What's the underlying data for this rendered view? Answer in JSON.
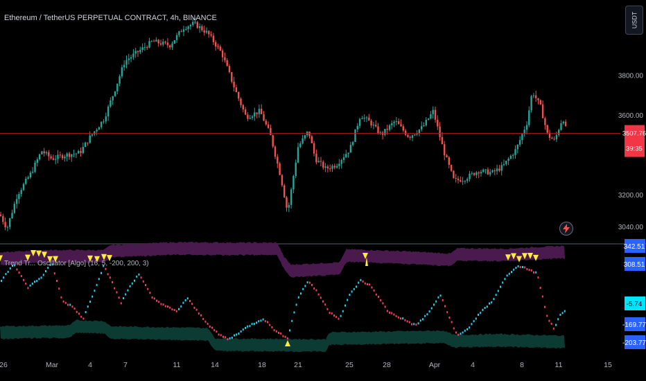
{
  "header": {
    "symbol_title": "Ethereum / TetherUS PERPETUAL CONTRACT, 4h, BINANCE",
    "currency_button": "USDT"
  },
  "indicator": {
    "label": "Trend Tr... Oscillator [Algo] (16, 5, -200, 200, 3)"
  },
  "colors": {
    "bull": "#26a69a",
    "bear": "#ef5350",
    "price_line": "#b71c1c",
    "price_label_bg": "#f23645",
    "osc_up": "#22d3ee",
    "osc_down": "#f43f5e",
    "upper_band": "#4a1a4f",
    "lower_band": "#0c3b33",
    "signal": "#ffeb3b",
    "blue_label": "#2962ff",
    "cyan_label": "#00e5ff"
  },
  "chart_data": [
    {
      "type": "candlestick",
      "title": "Ethereum / TetherUS PERPETUAL CONTRACT, 4h, BINANCE",
      "y_tick_labels": [
        "3800.00",
        "3600.00",
        "3200.00",
        "3040.00"
      ],
      "y_ticks": [
        3800,
        3600,
        3200,
        3040
      ],
      "ylim": [
        2960,
        4150
      ],
      "x_tick_labels": [
        "26",
        "Mar",
        "4",
        "7",
        "11",
        "14",
        "18",
        "21",
        "25",
        "28",
        "Apr",
        "4",
        "8",
        "11",
        "15"
      ],
      "current_price": 3507.76,
      "current_price_label": "3507.76",
      "countdown_label": "39:35",
      "price_path": [
        [
          0,
          3100
        ],
        [
          10,
          3030
        ],
        [
          25,
          3200
        ],
        [
          45,
          3310
        ],
        [
          60,
          3420
        ],
        [
          75,
          3380
        ],
        [
          95,
          3400
        ],
        [
          115,
          3410
        ],
        [
          130,
          3490
        ],
        [
          150,
          3580
        ],
        [
          165,
          3720
        ],
        [
          180,
          3870
        ],
        [
          200,
          3920
        ],
        [
          220,
          3970
        ],
        [
          245,
          3950
        ],
        [
          265,
          4040
        ],
        [
          280,
          4060
        ],
        [
          300,
          4010
        ],
        [
          320,
          3910
        ],
        [
          340,
          3720
        ],
        [
          355,
          3590
        ],
        [
          375,
          3620
        ],
        [
          390,
          3500
        ],
        [
          405,
          3290
        ],
        [
          415,
          3110
        ],
        [
          430,
          3440
        ],
        [
          445,
          3520
        ],
        [
          455,
          3380
        ],
        [
          470,
          3330
        ],
        [
          485,
          3350
        ],
        [
          505,
          3430
        ],
        [
          520,
          3600
        ],
        [
          535,
          3560
        ],
        [
          550,
          3500
        ],
        [
          570,
          3570
        ],
        [
          590,
          3490
        ],
        [
          610,
          3540
        ],
        [
          625,
          3620
        ],
        [
          640,
          3420
        ],
        [
          655,
          3270
        ],
        [
          670,
          3280
        ],
        [
          690,
          3320
        ],
        [
          710,
          3310
        ],
        [
          725,
          3340
        ],
        [
          745,
          3430
        ],
        [
          760,
          3560
        ],
        [
          768,
          3720
        ],
        [
          780,
          3640
        ],
        [
          790,
          3500
        ],
        [
          800,
          3470
        ],
        [
          812,
          3590
        ],
        [
          818,
          3507
        ]
      ]
    },
    {
      "type": "oscillator",
      "title": "Trend Tr... Oscillator [Algo] (16, 5, -200, 200, 3)",
      "y_tick_labels": [
        "342.51",
        "308.51",
        "-5.74",
        "-169.77",
        "-203.77"
      ],
      "y_ticks": [
        342.51,
        308.51,
        -5.74,
        -169.77,
        -203.77
      ],
      "ylim": [
        -260,
        360
      ],
      "current_value": -5.74,
      "current_value_label": "-5.74",
      "upper_band": [
        [
          0,
          285
        ],
        [
          60,
          300
        ],
        [
          150,
          300
        ],
        [
          160,
          330
        ],
        [
          250,
          345
        ],
        [
          400,
          342
        ],
        [
          410,
          260
        ],
        [
          420,
          215
        ],
        [
          490,
          230
        ],
        [
          500,
          305
        ],
        [
          600,
          290
        ],
        [
          650,
          280
        ],
        [
          660,
          310
        ],
        [
          730,
          308
        ],
        [
          815,
          325
        ]
      ],
      "lower_band": [
        [
          0,
          -140
        ],
        [
          100,
          -135
        ],
        [
          110,
          -105
        ],
        [
          150,
          -110
        ],
        [
          160,
          -140
        ],
        [
          300,
          -150
        ],
        [
          310,
          -210
        ],
        [
          470,
          -215
        ],
        [
          475,
          -175
        ],
        [
          560,
          -170
        ],
        [
          640,
          -165
        ],
        [
          655,
          -190
        ],
        [
          720,
          -185
        ],
        [
          815,
          -195
        ]
      ],
      "oscillator": [
        [
          0,
          150
        ],
        [
          20,
          260
        ],
        [
          40,
          120
        ],
        [
          60,
          180
        ],
        [
          75,
          260
        ],
        [
          90,
          40
        ],
        [
          105,
          10
        ],
        [
          120,
          -60
        ],
        [
          135,
          90
        ],
        [
          150,
          250
        ],
        [
          165,
          120
        ],
        [
          175,
          30
        ],
        [
          185,
          110
        ],
        [
          200,
          200
        ],
        [
          220,
          60
        ],
        [
          240,
          10
        ],
        [
          255,
          -20
        ],
        [
          270,
          60
        ],
        [
          285,
          -20
        ],
        [
          300,
          -90
        ],
        [
          315,
          -150
        ],
        [
          330,
          -180
        ],
        [
          345,
          -140
        ],
        [
          360,
          -100
        ],
        [
          380,
          -60
        ],
        [
          400,
          -140
        ],
        [
          415,
          -170
        ],
        [
          430,
          60
        ],
        [
          445,
          160
        ],
        [
          460,
          80
        ],
        [
          475,
          -20
        ],
        [
          490,
          -60
        ],
        [
          505,
          80
        ],
        [
          520,
          160
        ],
        [
          535,
          130
        ],
        [
          560,
          -20
        ],
        [
          580,
          -60
        ],
        [
          600,
          -100
        ],
        [
          620,
          -20
        ],
        [
          635,
          80
        ],
        [
          645,
          -20
        ],
        [
          660,
          -160
        ],
        [
          675,
          -120
        ],
        [
          690,
          -40
        ],
        [
          710,
          40
        ],
        [
          730,
          180
        ],
        [
          745,
          240
        ],
        [
          760,
          230
        ],
        [
          775,
          200
        ],
        [
          790,
          -60
        ],
        [
          800,
          -120
        ],
        [
          808,
          -40
        ],
        [
          815,
          -20
        ]
      ],
      "buy_signals_x": [
        415
      ],
      "sell_signals_x": [
        0,
        40,
        48,
        56,
        64,
        72,
        80,
        130,
        140,
        150,
        158,
        527,
        733,
        741,
        749,
        757,
        765,
        773
      ]
    }
  ]
}
